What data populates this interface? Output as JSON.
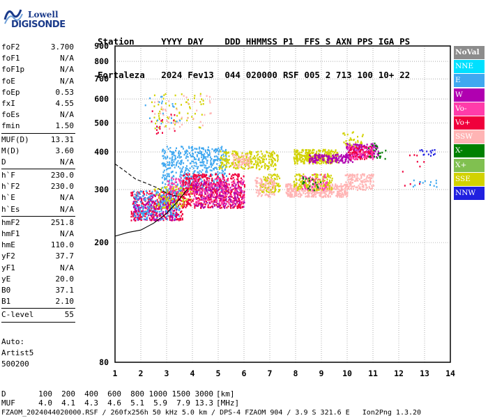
{
  "logo": {
    "line1": "Lowell",
    "line2": "DIGISONDE"
  },
  "header": {
    "labels": [
      "Station",
      "YYYY",
      "DAY",
      "DDD",
      "HHMMSS",
      "P1",
      "FFS",
      "S",
      "AXN",
      "PPS",
      "IGA",
      "PS"
    ],
    "values": [
      "Fortaleza",
      "2024",
      "Fev13",
      "044",
      "020000",
      "RSF",
      "005",
      "2",
      "713",
      "100",
      "10+",
      "22"
    ]
  },
  "params": [
    {
      "group": [
        {
          "name": "foF2",
          "value": "3.700"
        },
        {
          "name": "foF1",
          "value": "N/A"
        },
        {
          "name": "foF1p",
          "value": "N/A"
        },
        {
          "name": "foE",
          "value": "N/A"
        },
        {
          "name": "foEp",
          "value": "0.53"
        },
        {
          "name": "fxI",
          "value": "4.55"
        },
        {
          "name": "foEs",
          "value": "N/A"
        },
        {
          "name": "fmin",
          "value": "1.50"
        }
      ]
    },
    {
      "group": [
        {
          "name": "MUF(D)",
          "value": "13.31"
        },
        {
          "name": "M(D)",
          "value": "3.60"
        },
        {
          "name": "D",
          "value": "N/A"
        }
      ]
    },
    {
      "group": [
        {
          "name": "h`F",
          "value": "230.0"
        },
        {
          "name": "h`F2",
          "value": "230.0"
        },
        {
          "name": "h`E",
          "value": "N/A"
        },
        {
          "name": "h`Es",
          "value": "N/A"
        }
      ]
    },
    {
      "group": [
        {
          "name": "hmF2",
          "value": "251.8"
        },
        {
          "name": "hmF1",
          "value": "N/A"
        },
        {
          "name": "hmE",
          "value": "110.0"
        },
        {
          "name": "yF2",
          "value": "37.7"
        },
        {
          "name": "yF1",
          "value": "N/A"
        },
        {
          "name": "yE",
          "value": "20.0"
        },
        {
          "name": "B0",
          "value": "37.1"
        },
        {
          "name": "B1",
          "value": "2.10"
        }
      ]
    },
    {
      "group": [
        {
          "name": "C-level",
          "value": "55"
        }
      ]
    }
  ],
  "auto": {
    "line1": "Auto:",
    "line2": "Artist5",
    "line3": "500200"
  },
  "dmuf": {
    "d_label": "D",
    "d_values": [
      "100",
      "200",
      "400",
      "600",
      "800",
      "1000",
      "1500",
      "3000"
    ],
    "d_unit": "[km]",
    "muf_label": "MUF",
    "muf_values": [
      "4.0",
      "4.1",
      "4.3",
      "4.6",
      "5.1",
      "5.9",
      "7.9",
      "13.3"
    ],
    "muf_unit": "[MHz]"
  },
  "footer": "FZAOM_2024044020000.RSF / 260fx256h 50 kHz 5.0 km / DPS-4 FZAOM 904 / 3.9 S 321.6 E   Ion2Png 1.3.20",
  "legend": [
    {
      "label": "NoVal",
      "color": "#8c8c8c"
    },
    {
      "label": "NNE",
      "color": "#00e0ff"
    },
    {
      "label": "E",
      "color": "#40a8f0"
    },
    {
      "label": "W",
      "color": "#b000b0"
    },
    {
      "label": "Vo-",
      "color": "#ff3caa"
    },
    {
      "label": "Vo+",
      "color": "#f0003c"
    },
    {
      "label": "SSW",
      "color": "#ffb4b4"
    },
    {
      "label": "X-",
      "color": "#008000"
    },
    {
      "label": "X+",
      "color": "#80c050"
    },
    {
      "label": "SSE",
      "color": "#d2d200"
    },
    {
      "label": "NNW",
      "color": "#2020e0"
    }
  ],
  "chart_data": {
    "type": "scatter",
    "xlim": [
      1,
      14
    ],
    "ylim": [
      80,
      900
    ],
    "x_ticks": [
      "1",
      "2",
      "3",
      "4",
      "5",
      "6",
      "7",
      "8",
      "9",
      "10",
      "11",
      "12",
      "13",
      "14"
    ],
    "y_ticks": [
      "80",
      "200",
      "300",
      "400",
      "500",
      "600",
      "700",
      "800",
      "900"
    ],
    "grid": true,
    "y_scale": "log",
    "clusters": [
      {
        "color": "#f0003c",
        "x": [
          1.6,
          3.6
        ],
        "y": [
          238,
          300
        ],
        "n": 420
      },
      {
        "color": "#b000b0",
        "x": [
          1.7,
          3.4
        ],
        "y": [
          238,
          290
        ],
        "n": 180
      },
      {
        "color": "#40a8f0",
        "x": [
          1.7,
          3.5
        ],
        "y": [
          240,
          300
        ],
        "n": 200
      },
      {
        "color": "#40a8f0",
        "x": [
          2.8,
          5.3
        ],
        "y": [
          300,
          420
        ],
        "n": 520
      },
      {
        "color": "#ff3caa",
        "x": [
          3.0,
          4.2
        ],
        "y": [
          290,
          330
        ],
        "n": 120
      },
      {
        "color": "#d2d200",
        "x": [
          2.5,
          4.0
        ],
        "y": [
          262,
          310
        ],
        "n": 90
      },
      {
        "color": "#f0003c",
        "x": [
          3.6,
          6.0
        ],
        "y": [
          262,
          340
        ],
        "n": 520
      },
      {
        "color": "#b000b0",
        "x": [
          4.0,
          6.0
        ],
        "y": [
          262,
          320
        ],
        "n": 200
      },
      {
        "color": "#ff3caa",
        "x": [
          4.0,
          6.0
        ],
        "y": [
          270,
          330
        ],
        "n": 150
      },
      {
        "color": "#d2d200",
        "x": [
          5.0,
          7.3
        ],
        "y": [
          352,
          405
        ],
        "n": 260
      },
      {
        "color": "#ffb4b4",
        "x": [
          5.5,
          6.2
        ],
        "y": [
          355,
          395
        ],
        "n": 60
      },
      {
        "color": "#d2d200",
        "x": [
          6.6,
          7.4
        ],
        "y": [
          295,
          340
        ],
        "n": 90
      },
      {
        "color": "#ffb4b4",
        "x": [
          6.4,
          7.2
        ],
        "y": [
          285,
          330
        ],
        "n": 90
      },
      {
        "color": "#d2d200",
        "x": [
          7.9,
          9.6
        ],
        "y": [
          368,
          410
        ],
        "n": 300
      },
      {
        "color": "#b000b0",
        "x": [
          8.5,
          10.2
        ],
        "y": [
          370,
          395
        ],
        "n": 160
      },
      {
        "color": "#ffb4b4",
        "x": [
          7.6,
          10.0
        ],
        "y": [
          285,
          315
        ],
        "n": 420
      },
      {
        "color": "#d2d200",
        "x": [
          7.9,
          9.4
        ],
        "y": [
          300,
          340
        ],
        "n": 150
      },
      {
        "color": "#ff3caa",
        "x": [
          8.2,
          9.2
        ],
        "y": [
          300,
          340
        ],
        "n": 60
      },
      {
        "color": "#008000",
        "x": [
          8.2,
          9.0
        ],
        "y": [
          300,
          335
        ],
        "n": 20
      },
      {
        "color": "#b000b0",
        "x": [
          9.9,
          11.2
        ],
        "y": [
          385,
          430
        ],
        "n": 160
      },
      {
        "color": "#f0003c",
        "x": [
          10.0,
          11.0
        ],
        "y": [
          380,
          420
        ],
        "n": 90
      },
      {
        "color": "#ff3caa",
        "x": [
          10.0,
          11.0
        ],
        "y": [
          380,
          420
        ],
        "n": 60
      },
      {
        "color": "#ffb4b4",
        "x": [
          9.9,
          11.0
        ],
        "y": [
          300,
          340
        ],
        "n": 140
      },
      {
        "color": "#d2d200",
        "x": [
          9.8,
          10.6
        ],
        "y": [
          420,
          470
        ],
        "n": 30
      },
      {
        "color": "#008000",
        "x": [
          10.8,
          11.5
        ],
        "y": [
          380,
          430
        ],
        "n": 20
      },
      {
        "color": "#2020e0",
        "x": [
          12.8,
          13.4
        ],
        "y": [
          390,
          410
        ],
        "n": 14
      },
      {
        "color": "#40a8f0",
        "x": [
          12.5,
          13.5
        ],
        "y": [
          305,
          325
        ],
        "n": 14
      },
      {
        "color": "#f0003c",
        "x": [
          12.0,
          13.0
        ],
        "y": [
          310,
          400
        ],
        "n": 10
      },
      {
        "color": "#d2d200",
        "x": [
          2.4,
          4.5
        ],
        "y": [
          480,
          630
        ],
        "n": 60
      },
      {
        "color": "#ffb4b4",
        "x": [
          2.5,
          4.7
        ],
        "y": [
          480,
          620
        ],
        "n": 45
      },
      {
        "color": "#40a8f0",
        "x": [
          2.0,
          3.5
        ],
        "y": [
          470,
          620
        ],
        "n": 20
      },
      {
        "color": "#f0003c",
        "x": [
          2.3,
          3.5
        ],
        "y": [
          460,
          560
        ],
        "n": 15
      }
    ],
    "curves": [
      {
        "style": "solid",
        "x": [
          1,
          1.5,
          2,
          2.5,
          3,
          3.4,
          3.8
        ],
        "y": [
          210,
          216,
          220,
          232,
          250,
          272,
          300
        ]
      },
      {
        "style": "dashed",
        "x": [
          1,
          1.4,
          1.8,
          2.2,
          2.6,
          3.0,
          3.4
        ],
        "y": [
          365,
          345,
          325,
          315,
          305,
          292,
          285
        ]
      }
    ]
  }
}
